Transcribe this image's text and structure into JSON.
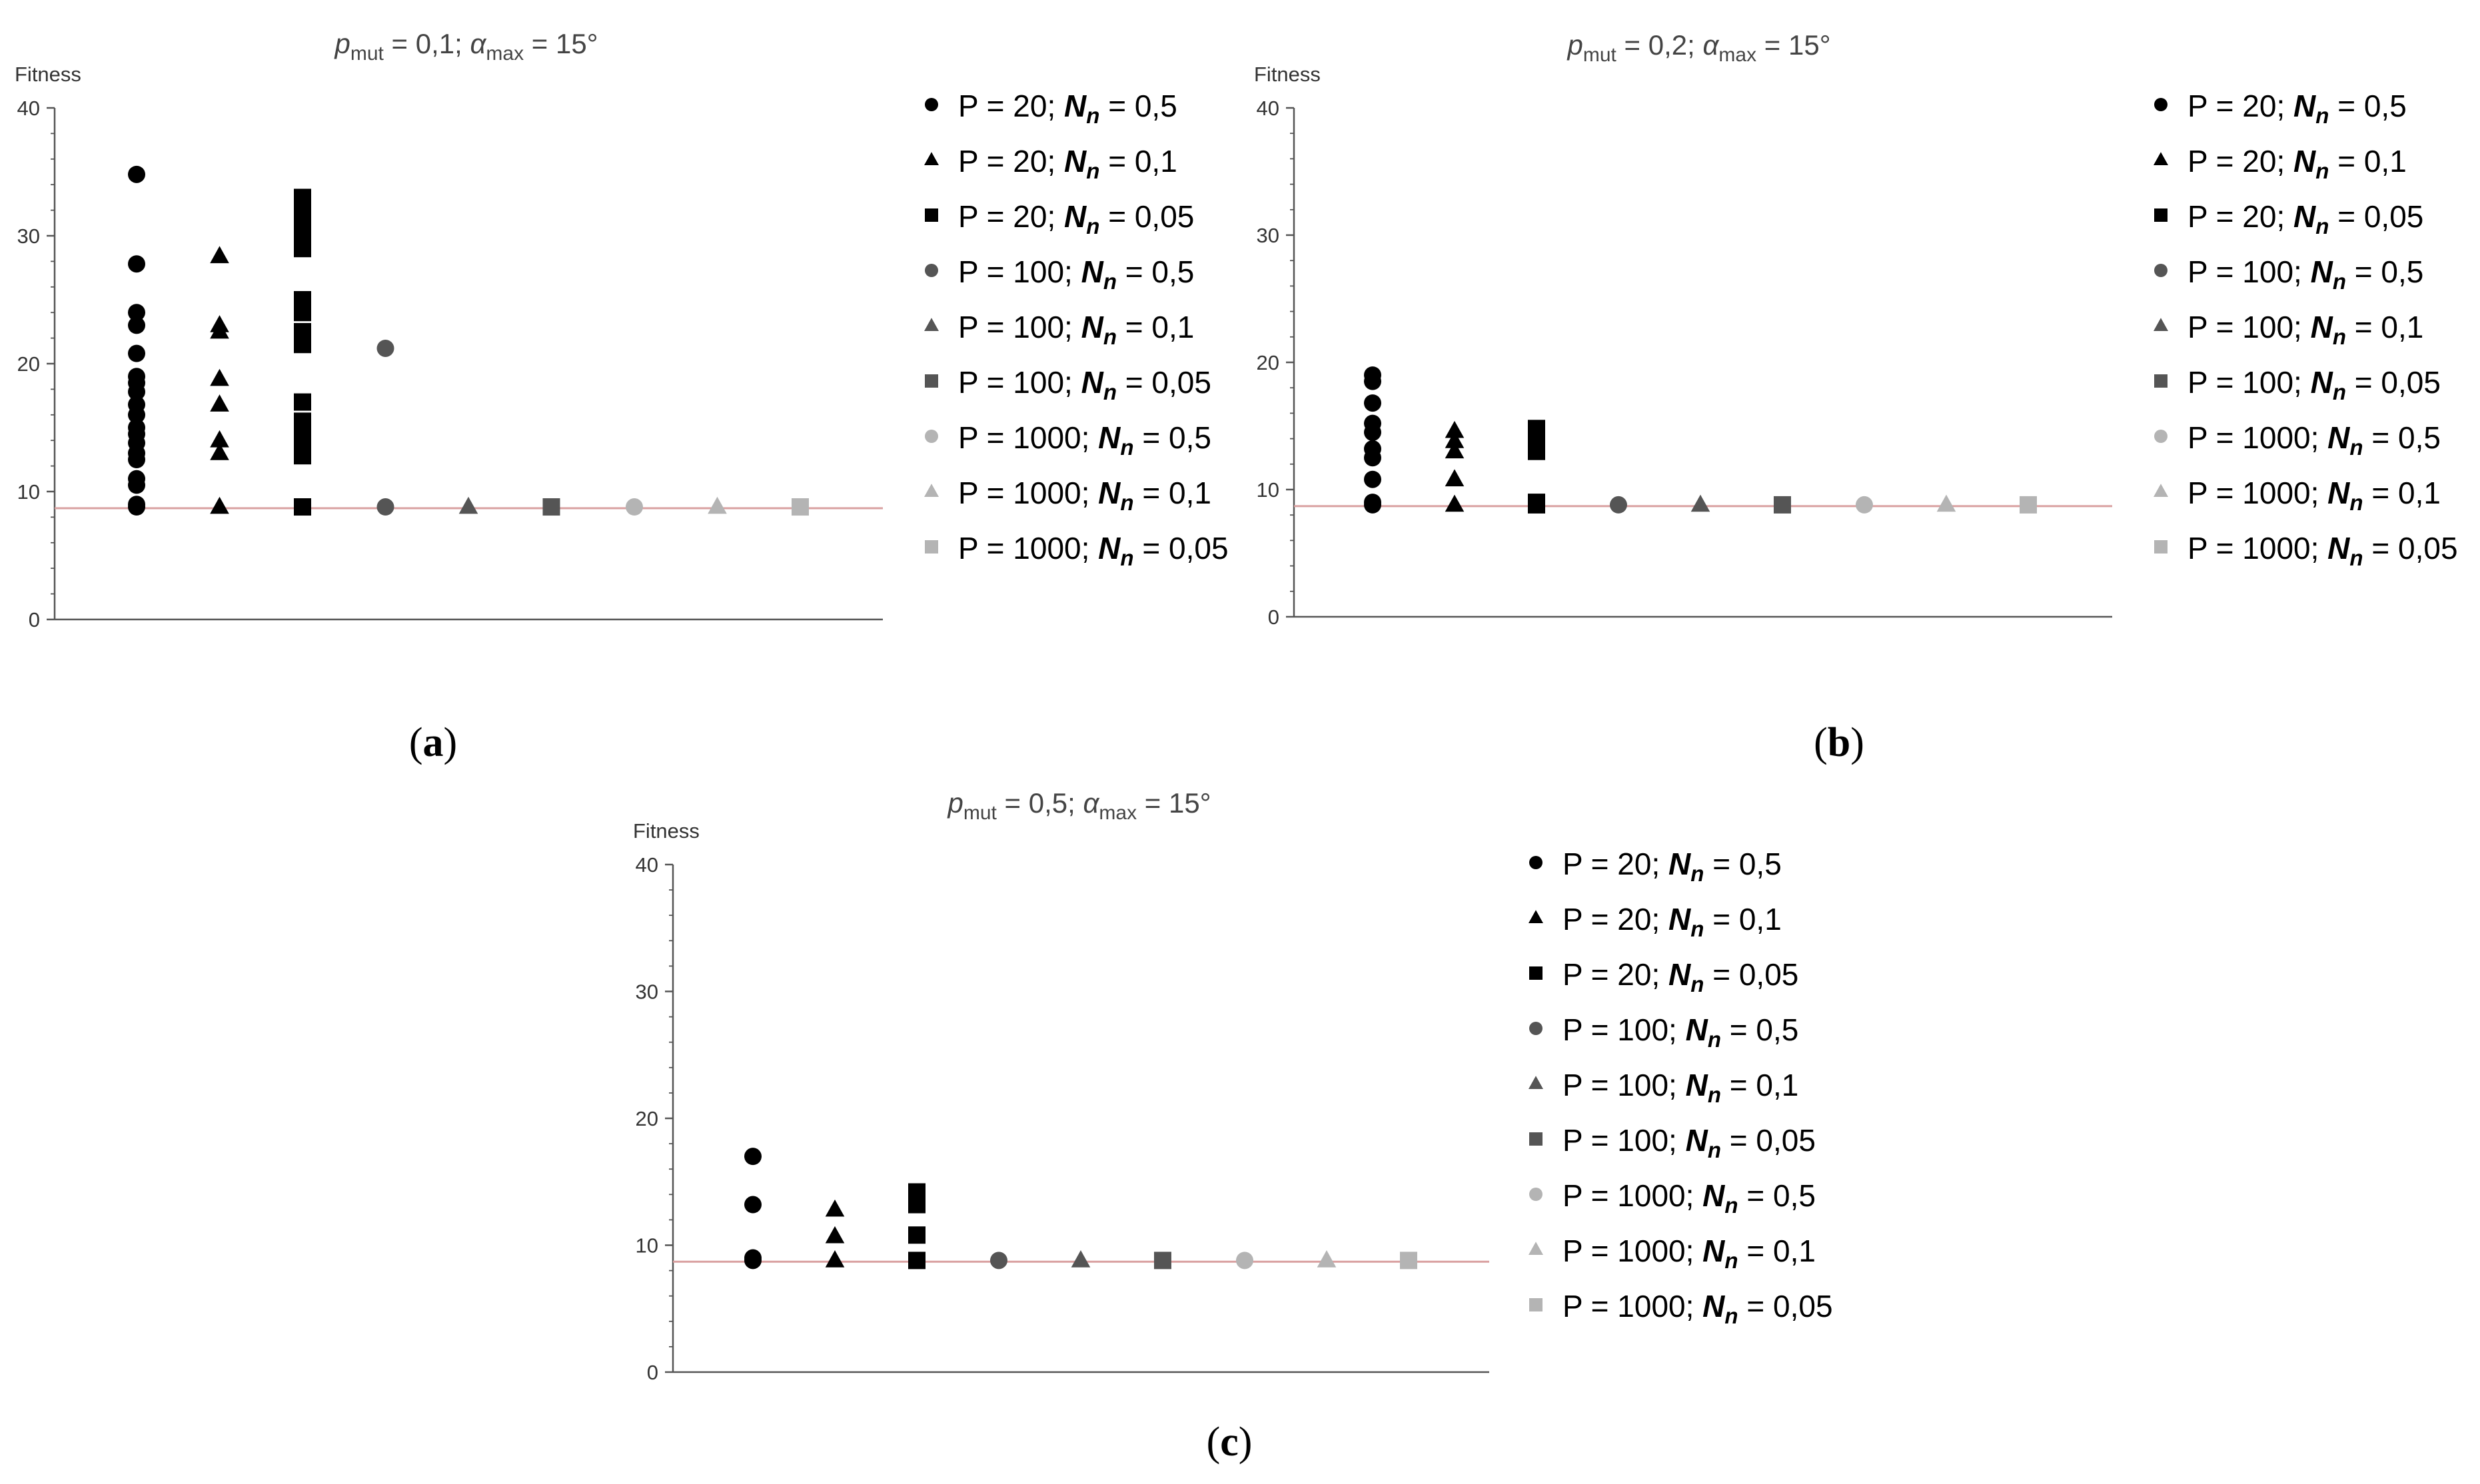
{
  "figure": {
    "panel_labels": [
      "(a)",
      "(b)",
      "(c)"
    ]
  },
  "legend": {
    "entries": [
      {
        "p": "P = 20; ",
        "n": "N",
        "sub": "n",
        "v": " = 0,5"
      },
      {
        "p": "P = 20; ",
        "n": "N",
        "sub": "n",
        "v": " = 0,1"
      },
      {
        "p": "P = 20; ",
        "n": "N",
        "sub": "n",
        "v": " = 0,05"
      },
      {
        "p": "P = 100; ",
        "n": "N",
        "sub": "n",
        "v": " = 0,5"
      },
      {
        "p": "P = 100; ",
        "n": "N",
        "sub": "n",
        "v": " = 0,1"
      },
      {
        "p": "P = 100; ",
        "n": "N",
        "sub": "n",
        "v": " = 0,05"
      },
      {
        "p": "P = 1000; ",
        "n": "N",
        "sub": "n",
        "v": " = 0,5"
      },
      {
        "p": "P = 1000; ",
        "n": "N",
        "sub": "n",
        "v": " = 0,1"
      },
      {
        "p": "P = 1000; ",
        "n": "N",
        "sub": "n",
        "v": " = 0,05"
      }
    ],
    "markers": [
      "circle",
      "triangle",
      "square",
      "circle",
      "triangle",
      "square",
      "circle",
      "triangle",
      "square"
    ],
    "colors": [
      "#000000",
      "#000000",
      "#000000",
      "#555555",
      "#555555",
      "#555555",
      "#b4b4b4",
      "#b4b4b4",
      "#b4b4b4"
    ]
  },
  "chart_data": [
    {
      "type": "scatter",
      "title": {
        "p": "p",
        "p_sub": "mut",
        "mid": " = 0,1; ",
        "a": "α",
        "a_sub": "max",
        "end": " = 15°"
      },
      "ylabel": "Fitness",
      "ylim": [
        0,
        40
      ],
      "yticks": [
        "0",
        "10",
        "20",
        "30",
        "40"
      ],
      "reference_line": {
        "y": 8.7,
        "color": "#d9a0a0"
      },
      "series": [
        {
          "values": [
            8.8,
            9.0,
            10.5,
            11.0,
            12.5,
            13.0,
            13.8,
            14.5,
            15.0,
            16.0,
            16.8,
            17.8,
            18.5,
            19.0,
            20.8,
            23.0,
            24.0,
            27.8,
            34.8
          ]
        },
        {
          "values": [
            8.8,
            13.0,
            14.0,
            16.8,
            18.8,
            22.5,
            23.0,
            28.4
          ]
        },
        {
          "values": [
            8.8,
            12.8,
            13.5,
            14.0,
            14.8,
            15.5,
            17.0,
            21.5,
            22.5,
            24.0,
            25.0,
            29.0,
            30.0,
            31.0,
            32.0,
            33.0
          ]
        },
        {
          "values": [
            8.8,
            21.2
          ]
        },
        {
          "values": [
            8.8
          ]
        },
        {
          "values": [
            8.8
          ]
        },
        {
          "values": [
            8.8
          ]
        },
        {
          "values": [
            8.8
          ]
        },
        {
          "values": [
            8.8
          ]
        }
      ]
    },
    {
      "type": "scatter",
      "title": {
        "p": "p",
        "p_sub": "mut",
        "mid": " = 0,2; ",
        "a": "α",
        "a_sub": "max",
        "end": " = 15°"
      },
      "ylabel": "Fitness",
      "ylim": [
        0,
        40
      ],
      "yticks": [
        "0",
        "10",
        "20",
        "30",
        "40"
      ],
      "reference_line": {
        "y": 8.7,
        "color": "#d9a0a0"
      },
      "series": [
        {
          "values": [
            8.8,
            9.0,
            10.8,
            12.5,
            13.2,
            14.5,
            15.2,
            16.8,
            18.5,
            19.0
          ]
        },
        {
          "values": [
            8.8,
            10.8,
            13.0,
            13.8,
            14.6
          ]
        },
        {
          "values": [
            8.8,
            9.0,
            13.0,
            13.8,
            14.8
          ]
        },
        {
          "values": [
            8.8
          ]
        },
        {
          "values": [
            8.8
          ]
        },
        {
          "values": [
            8.8
          ]
        },
        {
          "values": [
            8.8
          ]
        },
        {
          "values": [
            8.8
          ]
        },
        {
          "values": [
            8.8
          ]
        }
      ]
    },
    {
      "type": "scatter",
      "title": {
        "p": "p",
        "p_sub": "mut",
        "mid": " = 0,5; ",
        "a": "α",
        "a_sub": "max",
        "end": " = 15°"
      },
      "ylabel": "Fitness",
      "ylim": [
        0,
        40
      ],
      "yticks": [
        "0",
        "10",
        "20",
        "30",
        "40"
      ],
      "reference_line": {
        "y": 8.7,
        "color": "#d9a0a0"
      },
      "series": [
        {
          "values": [
            8.8,
            9.0,
            13.2,
            17.0
          ]
        },
        {
          "values": [
            8.8,
            10.7,
            12.8
          ]
        },
        {
          "values": [
            8.8,
            10.8,
            13.2,
            14.2
          ]
        },
        {
          "values": [
            8.8
          ]
        },
        {
          "values": [
            8.8
          ]
        },
        {
          "values": [
            8.8
          ]
        },
        {
          "values": [
            8.8
          ]
        },
        {
          "values": [
            8.8
          ]
        },
        {
          "values": [
            8.8
          ]
        }
      ]
    }
  ]
}
